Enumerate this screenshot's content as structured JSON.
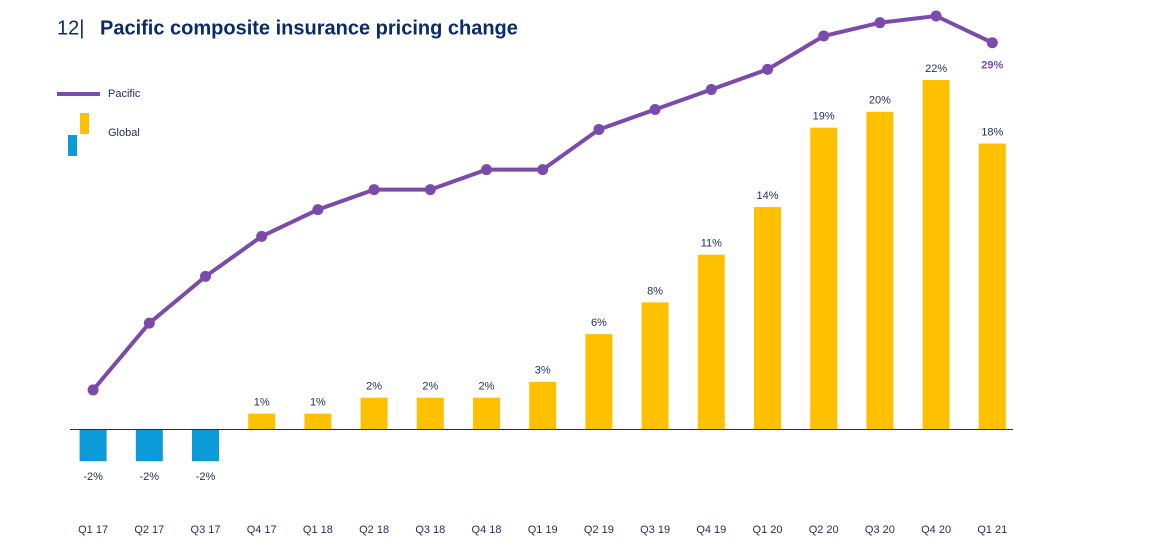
{
  "chart_data": {
    "type": "bar_line",
    "page_label": "12|",
    "title": "Pacific composite insurance pricing change",
    "categories": [
      "Q1 17",
      "Q2 17",
      "Q3 17",
      "Q4 17",
      "Q1 18",
      "Q2 18",
      "Q3 18",
      "Q4 18",
      "Q1 19",
      "Q2 19",
      "Q3 19",
      "Q4 19",
      "Q1 20",
      "Q2 20",
      "Q3 20",
      "Q4 20",
      "Q1 21"
    ],
    "series": [
      {
        "name": "Pacific",
        "type": "line",
        "axis": "y2",
        "color": "#7b4bab",
        "values": [
          3,
          8,
          11.5,
          14.5,
          16.5,
          18,
          18,
          19.5,
          19.5,
          22.5,
          24,
          25.5,
          27,
          29.5,
          30.5,
          31,
          29
        ],
        "value_labels": [
          null,
          null,
          null,
          null,
          null,
          null,
          null,
          null,
          null,
          null,
          null,
          null,
          null,
          null,
          null,
          null,
          "29%"
        ]
      },
      {
        "name": "Global",
        "type": "bar",
        "color": "#ffc000",
        "negative_color": "#0b9bd8",
        "values": [
          -2,
          -2,
          -2,
          1,
          1,
          2,
          2,
          2,
          3,
          6,
          8,
          11,
          14,
          19,
          20,
          22,
          18
        ],
        "value_labels": [
          "-2%",
          "-2%",
          "-2%",
          "1%",
          "1%",
          "2%",
          "2%",
          "2%",
          "3%",
          "6%",
          "8%",
          "11%",
          "14%",
          "19%",
          "20%",
          "22%",
          "18%"
        ]
      }
    ],
    "ylim": [
      -4,
      22
    ],
    "y2lim": [
      0,
      31
    ]
  }
}
